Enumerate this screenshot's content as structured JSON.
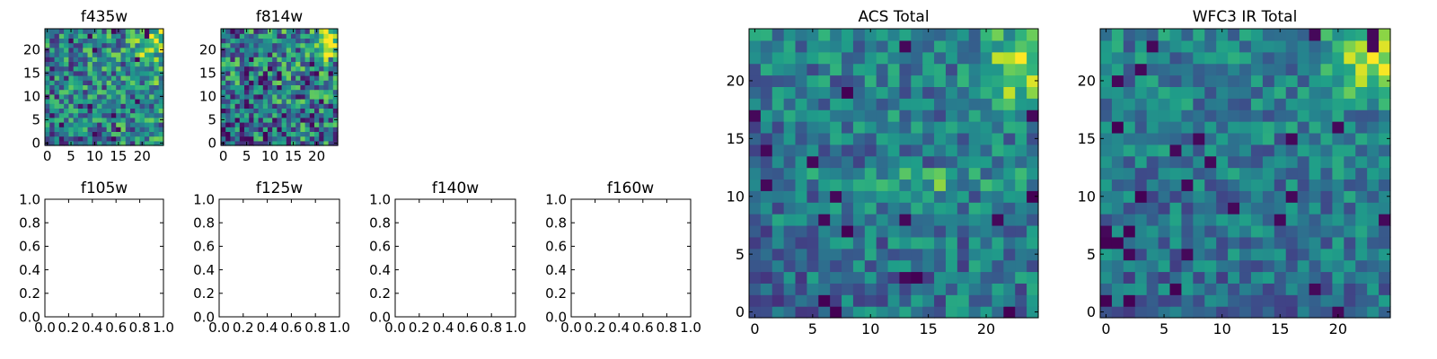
{
  "chart_data": [
    {
      "type": "heatmap",
      "title": "f435w",
      "xlabel": "",
      "ylabel": "",
      "xlim": [
        -0.5,
        24.5
      ],
      "ylim": [
        -0.5,
        24.5
      ],
      "xticks": [
        0,
        5,
        10,
        15,
        20
      ],
      "yticks": [
        0,
        5,
        10,
        15,
        20
      ],
      "grid": false,
      "colormap": "viridis",
      "grid_size": 25,
      "seed": 11,
      "texture": 0.34,
      "gradient": {
        "x": 0.45,
        "y": 0.25,
        "rows": [],
        "hot_corner": [
          22,
          22
        ],
        "hot_strength": 0.45
      }
    },
    {
      "type": "heatmap",
      "title": "f814w",
      "xlabel": "",
      "ylabel": "",
      "xlim": [
        -0.5,
        24.5
      ],
      "ylim": [
        -0.5,
        24.5
      ],
      "xticks": [
        0,
        5,
        10,
        15,
        20
      ],
      "yticks": [
        0,
        5,
        10,
        15,
        20
      ],
      "grid": false,
      "colormap": "viridis",
      "grid_size": 25,
      "seed": 23,
      "texture": 0.38,
      "gradient": {
        "x": 0.2,
        "y": 0.3,
        "rows": [],
        "hot_corner": [
          23,
          22
        ],
        "hot_strength": 0.55
      }
    },
    {
      "type": "empty",
      "title": "f105w",
      "xlim": [
        0.0,
        1.0
      ],
      "ylim": [
        0.0,
        1.0
      ],
      "xticks": [
        "0.0",
        "0.2",
        "0.4",
        "0.6",
        "0.8",
        "1.0"
      ],
      "yticks": [
        "0.0",
        "0.2",
        "0.4",
        "0.6",
        "0.8",
        "1.0"
      ]
    },
    {
      "type": "empty",
      "title": "f125w",
      "xlim": [
        0.0,
        1.0
      ],
      "ylim": [
        0.0,
        1.0
      ],
      "xticks": [
        "0.0",
        "0.2",
        "0.4",
        "0.6",
        "0.8",
        "1.0"
      ],
      "yticks": [
        "0.0",
        "0.2",
        "0.4",
        "0.6",
        "0.8",
        "1.0"
      ]
    },
    {
      "type": "empty",
      "title": "f140w",
      "xlim": [
        0.0,
        1.0
      ],
      "ylim": [
        0.0,
        1.0
      ],
      "xticks": [
        "0.0",
        "0.2",
        "0.4",
        "0.6",
        "0.8",
        "1.0"
      ],
      "yticks": [
        "0.0",
        "0.2",
        "0.4",
        "0.6",
        "0.8",
        "1.0"
      ]
    },
    {
      "type": "empty",
      "title": "f160w",
      "xlim": [
        0.0,
        1.0
      ],
      "ylim": [
        0.0,
        1.0
      ],
      "xticks": [
        "0.0",
        "0.2",
        "0.4",
        "0.6",
        "0.8",
        "1.0"
      ],
      "yticks": [
        "0.0",
        "0.2",
        "0.4",
        "0.6",
        "0.8",
        "1.0"
      ]
    },
    {
      "type": "heatmap",
      "title": "ACS Total",
      "xlabel": "",
      "ylabel": "",
      "xlim": [
        -0.5,
        24.5
      ],
      "ylim": [
        -0.5,
        24.5
      ],
      "xticks": [
        0,
        5,
        10,
        15,
        20
      ],
      "yticks": [
        0,
        5,
        10,
        15,
        20
      ],
      "grid": false,
      "colormap": "viridis",
      "grid_size": 25,
      "seed": 5,
      "texture": 0.22,
      "gradient": {
        "x": 0.15,
        "y": 0.25,
        "rows": [
          [
            11,
            0.2
          ],
          [
            12,
            0.15
          ]
        ],
        "hot_corner": [
          23,
          21
        ],
        "hot_strength": 0.45
      },
      "dark_cells": [
        [
          8,
          19
        ],
        [
          24,
          10
        ],
        [
          8,
          7
        ],
        [
          6,
          1
        ],
        [
          14,
          3
        ],
        [
          7,
          0
        ],
        [
          22,
          0
        ]
      ]
    },
    {
      "type": "heatmap",
      "title": "WFC3 IR Total",
      "xlabel": "",
      "ylabel": "",
      "xlim": [
        -0.5,
        24.5
      ],
      "ylim": [
        -0.5,
        24.5
      ],
      "xticks": [
        0,
        5,
        10,
        15,
        20
      ],
      "yticks": [
        0,
        5,
        10,
        15,
        20
      ],
      "grid": false,
      "colormap": "viridis",
      "grid_size": 25,
      "seed": 37,
      "texture": 0.2,
      "gradient": {
        "x": 0.1,
        "y": 0.3,
        "rows": [],
        "hot_corner": [
          23,
          22
        ],
        "hot_strength": 0.5
      },
      "dark_cells": [
        [
          1,
          16
        ],
        [
          3,
          10
        ],
        [
          0,
          6
        ],
        [
          1,
          6
        ],
        [
          2,
          7
        ],
        [
          6,
          2
        ],
        [
          2,
          1
        ],
        [
          0,
          1
        ]
      ]
    }
  ]
}
